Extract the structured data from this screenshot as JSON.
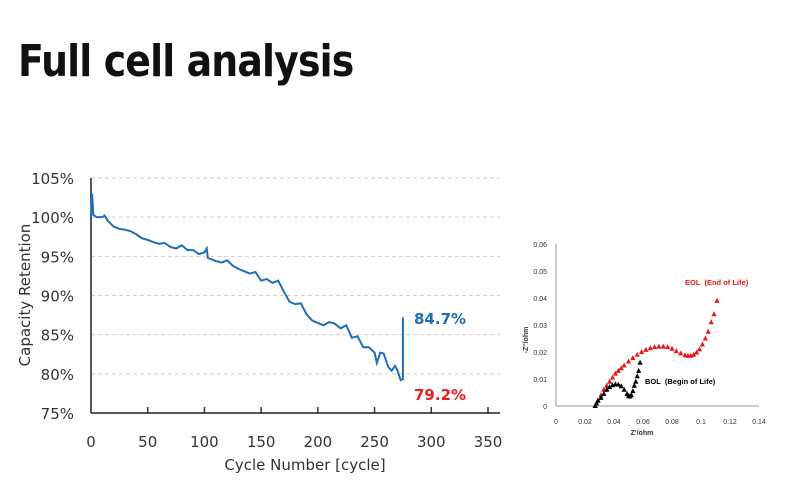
{
  "page": {
    "title": "Full cell analysis"
  },
  "chart_data": [
    {
      "type": "line",
      "title": "",
      "xlabel": "Cycle Number [cycle]",
      "ylabel": "Capacity Retention",
      "xlim": [
        0,
        350
      ],
      "ylim": [
        75,
        105
      ],
      "xticks": [
        "0",
        "50",
        "100",
        "150",
        "200",
        "250",
        "300",
        "350"
      ],
      "yticks": [
        "75%",
        "80%",
        "85%",
        "90%",
        "95%",
        "100%",
        "105%"
      ],
      "grid": "horizontal dashed",
      "color": "#1f6fb8",
      "series": [
        {
          "name": "Capacity Retention",
          "x": [
            0,
            1,
            2,
            5,
            10,
            12,
            15,
            20,
            25,
            30,
            35,
            40,
            45,
            50,
            55,
            60,
            65,
            70,
            75,
            80,
            85,
            90,
            95,
            100,
            102,
            103,
            110,
            115,
            120,
            125,
            130,
            135,
            140,
            145,
            150,
            155,
            160,
            165,
            170,
            175,
            180,
            185,
            190,
            195,
            200,
            205,
            210,
            215,
            220,
            225,
            230,
            235,
            240,
            245,
            250,
            252,
            255,
            258,
            262,
            265,
            268,
            270,
            273,
            275,
            275
          ],
          "y": [
            100,
            103,
            100.3,
            100,
            100,
            100.2,
            99.5,
            98.8,
            98.5,
            98.4,
            98.2,
            97.8,
            97.3,
            97.1,
            96.8,
            96.6,
            96.7,
            96.2,
            96,
            96.4,
            95.8,
            95.8,
            95.3,
            95.5,
            96,
            94.8,
            94.4,
            94.2,
            94.5,
            93.8,
            93.4,
            93.1,
            92.8,
            93,
            91.9,
            92.1,
            91.6,
            91.9,
            90.5,
            89.2,
            88.9,
            89,
            87.6,
            86.8,
            86.5,
            86.2,
            86.6,
            86.4,
            85.8,
            86.2,
            84.6,
            84.8,
            83.4,
            83.4,
            82.7,
            81.4,
            82.7,
            82.6,
            80.9,
            80.4,
            81,
            80.5,
            79.2,
            79.3,
            87.2
          ]
        }
      ],
      "annotations": [
        {
          "text": "84.7%",
          "color": "#1f6fb8"
        },
        {
          "text": "79.2%",
          "color": "#ee1c1c"
        }
      ]
    },
    {
      "type": "scatter",
      "xlabel": "Z'/ohm",
      "ylabel": "-Z''/ohm",
      "xlim": [
        0,
        0.14
      ],
      "ylim": [
        0,
        0.06
      ],
      "xticks": [
        "0",
        "0.02",
        "0.04",
        "0.06",
        "0.08",
        "0.1",
        "0.12",
        "0.14"
      ],
      "yticks": [
        "0",
        "0.01",
        "0.02",
        "0.03",
        "0.04",
        "0.05",
        "0.06"
      ],
      "series": [
        {
          "name": "EOL  (End of Life)",
          "color": "#e41a1a",
          "x": [
            0.027,
            0.029,
            0.031,
            0.033,
            0.035,
            0.037,
            0.039,
            0.041,
            0.043,
            0.045,
            0.047,
            0.05,
            0.053,
            0.056,
            0.059,
            0.062,
            0.065,
            0.068,
            0.071,
            0.074,
            0.077,
            0.08,
            0.083,
            0.086,
            0.089,
            0.091,
            0.093,
            0.095,
            0.097,
            0.099,
            0.101,
            0.103,
            0.105,
            0.107,
            0.109,
            0.111
          ],
          "y": [
            0,
            0.002,
            0.004,
            0.006,
            0.0075,
            0.009,
            0.0105,
            0.012,
            0.013,
            0.014,
            0.015,
            0.0165,
            0.0178,
            0.019,
            0.02,
            0.0208,
            0.0214,
            0.0218,
            0.022,
            0.022,
            0.0218,
            0.0212,
            0.0203,
            0.0195,
            0.0188,
            0.0186,
            0.0186,
            0.019,
            0.0198,
            0.021,
            0.0228,
            0.025,
            0.0275,
            0.031,
            0.034,
            0.039
          ]
        },
        {
          "name": "BOL  (Begin of Life)",
          "color": "#000000",
          "x": [
            0.027,
            0.028,
            0.029,
            0.031,
            0.033,
            0.035,
            0.037,
            0.039,
            0.041,
            0.043,
            0.045,
            0.047,
            0.049,
            0.05,
            0.051,
            0.052,
            0.053,
            0.054,
            0.055,
            0.056,
            0.057,
            0.058
          ],
          "y": [
            0,
            0.001,
            0.002,
            0.003,
            0.0045,
            0.006,
            0.007,
            0.0077,
            0.008,
            0.0079,
            0.0073,
            0.006,
            0.0045,
            0.0038,
            0.0035,
            0.004,
            0.0055,
            0.0075,
            0.009,
            0.011,
            0.013,
            0.016
          ]
        }
      ]
    }
  ]
}
